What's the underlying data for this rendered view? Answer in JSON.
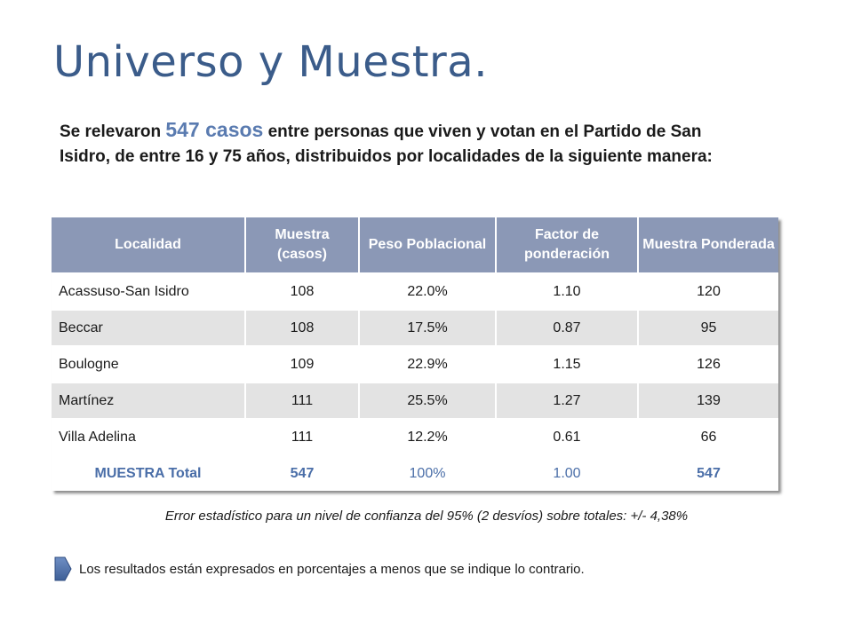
{
  "title": "Universo y Muestra.",
  "intro": {
    "pre": "Se relevaron ",
    "highlight": "547 casos",
    "post": " entre personas que viven y votan en el Partido de San Isidro, de entre 16 y 75 años, distribuidos por localidades de la siguiente manera:",
    "highlight_color": "#5a7bb0"
  },
  "table": {
    "headers": [
      "Localidad",
      "Muestra (casos)",
      "Peso Poblacional",
      "Factor de ponderación",
      "Muestra Ponderada"
    ],
    "rows": [
      [
        "Acassuso-San Isidro",
        "108",
        "22.0%",
        "1.10",
        "120"
      ],
      [
        "Beccar",
        "108",
        "17.5%",
        "0.87",
        "95"
      ],
      [
        "Boulogne",
        "109",
        "22.9%",
        "1.15",
        "126"
      ],
      [
        "Martínez",
        "111",
        "25.5%",
        "1.27",
        "139"
      ],
      [
        "Villa Adelina",
        "111",
        "12.2%",
        "0.61",
        "66"
      ]
    ],
    "total": [
      "MUESTRA Total",
      "547",
      "100%",
      "1.00",
      "547"
    ],
    "header_color": "#8b98b6",
    "total_color": "#4a6ea8"
  },
  "error_note": "Error estadístico para un nivel de confianza del 95% (2 desvíos) sobre totales:  +/- 4,38%",
  "footer_note": {
    "icon": "arrow-right-icon",
    "text": "Los resultados están expresados en porcentajes a menos que se indique lo contrario."
  }
}
